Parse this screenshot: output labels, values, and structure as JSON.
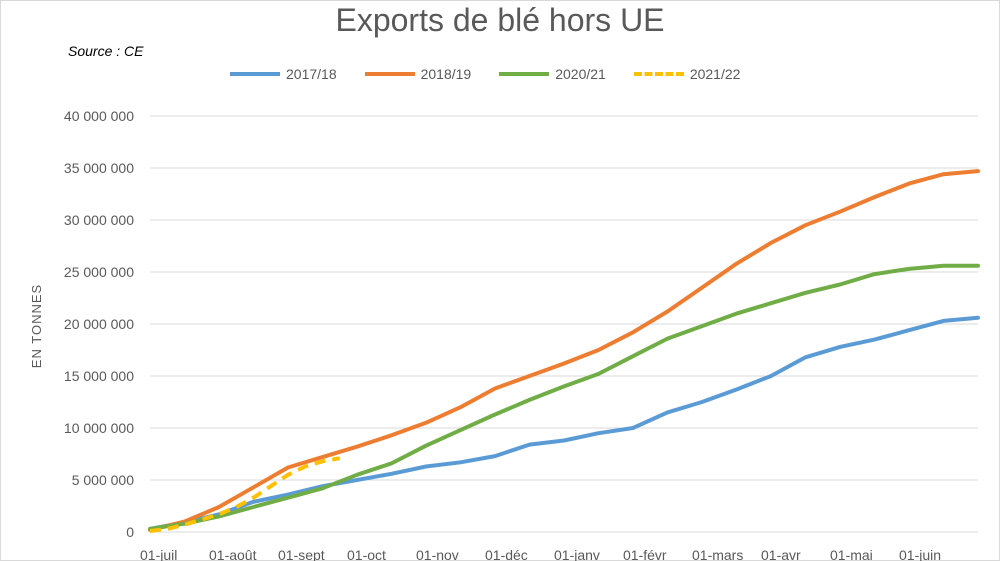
{
  "chart_data": {
    "type": "line",
    "title": "Exports de  blé hors UE",
    "source": "Source : CE",
    "ylabel": "EN TONNES",
    "xlabel": "",
    "ylim": [
      0,
      40000000
    ],
    "yticks": [
      0,
      5000000,
      10000000,
      15000000,
      20000000,
      25000000,
      30000000,
      35000000,
      40000000
    ],
    "ytick_labels": [
      "0",
      "5 000 000",
      "10 000 000",
      "15 000 000",
      "20 000 000",
      "25 000 000",
      "30 000 000",
      "35 000 000",
      "40 000 000"
    ],
    "x_labels": [
      "01-juil",
      "01-août",
      "01-sept",
      "01-oct",
      "01-nov",
      "01-déc",
      "01-janv",
      "01-févr",
      "01-mars",
      "01-avr",
      "01-mai",
      "01-juin"
    ],
    "x_label_month_index": [
      0,
      1,
      2,
      3,
      4,
      5,
      6,
      7,
      8,
      9,
      10,
      11
    ],
    "xlim_months": [
      0,
      12
    ],
    "grid": true,
    "legend_position": "top",
    "series": [
      {
        "name": "2017/18",
        "color": "#5b9bd5",
        "dashed": false,
        "x": [
          0,
          0.5,
          1,
          1.5,
          2,
          2.5,
          3,
          3.5,
          4,
          4.5,
          5,
          5.5,
          6,
          6.5,
          7,
          7.5,
          8,
          8.5,
          9,
          9.5,
          10,
          10.5,
          11,
          11.5,
          12
        ],
        "y": [
          300000,
          900000,
          1700000,
          2900000,
          3600000,
          4400000,
          5000000,
          5600000,
          6300000,
          6700000,
          7300000,
          8400000,
          8800000,
          9500000,
          10000000,
          11500000,
          12500000,
          13700000,
          15000000,
          16800000,
          17800000,
          18500000,
          19400000,
          20300000,
          20600000
        ]
      },
      {
        "name": "2018/19",
        "color": "#ed7d31",
        "dashed": false,
        "x": [
          0,
          0.5,
          1,
          1.5,
          2,
          2.5,
          3,
          3.5,
          4,
          4.5,
          5,
          5.5,
          6,
          6.5,
          7,
          7.5,
          8,
          8.5,
          9,
          9.5,
          10,
          10.5,
          11,
          11.5,
          12
        ],
        "y": [
          200000,
          1000000,
          2400000,
          4300000,
          6200000,
          7200000,
          8200000,
          9300000,
          10500000,
          12000000,
          13800000,
          15000000,
          16200000,
          17500000,
          19200000,
          21200000,
          23500000,
          25800000,
          27800000,
          29500000,
          30800000,
          32200000,
          33500000,
          34400000,
          34700000
        ]
      },
      {
        "name": "2020/21",
        "color": "#70ad47",
        "dashed": false,
        "x": [
          0,
          0.5,
          1,
          1.5,
          2,
          2.5,
          3,
          3.5,
          4,
          4.5,
          5,
          5.5,
          6,
          6.5,
          7,
          7.5,
          8,
          8.5,
          9,
          9.5,
          10,
          10.5,
          11,
          11.5,
          12
        ],
        "y": [
          300000,
          800000,
          1500000,
          2400000,
          3300000,
          4200000,
          5500000,
          6600000,
          8300000,
          9800000,
          11300000,
          12700000,
          14000000,
          15200000,
          16900000,
          18600000,
          19800000,
          21000000,
          22000000,
          23000000,
          23800000,
          24800000,
          25300000,
          25600000,
          25600000
        ]
      },
      {
        "name": "2021/22",
        "color": "#ffc000",
        "dashed": true,
        "x": [
          0,
          0.25,
          0.5,
          0.75,
          1,
          1.25,
          1.5,
          1.75,
          2,
          2.25,
          2.5,
          2.75
        ],
        "y": [
          100000,
          300000,
          700000,
          1200000,
          1700000,
          2400000,
          3300000,
          4400000,
          5500000,
          6300000,
          6800000,
          7100000
        ]
      }
    ]
  }
}
